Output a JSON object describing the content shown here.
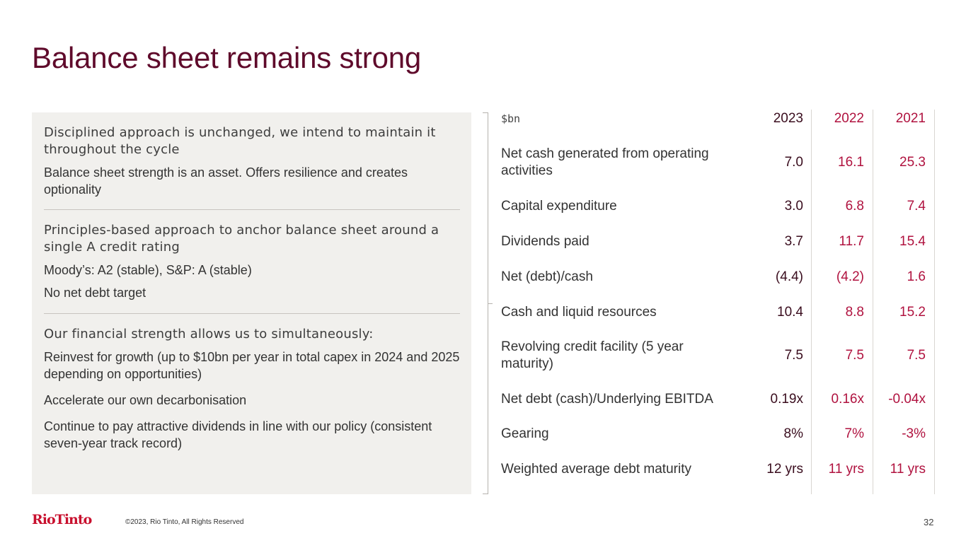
{
  "title": "Balance sheet remains strong",
  "left_panel": {
    "s1_heading": "Disciplined approach is unchanged, we intend to maintain it throughout the cycle",
    "s1_text": "Balance sheet strength is an asset. Offers resilience and creates optionality",
    "s2_heading": "Principles-based approach to anchor balance sheet around a single A credit rating",
    "s2_text1": "Moody’s: A2 (stable), S&P: A (stable)",
    "s2_text2": "No net debt target",
    "s3_heading": "Our financial strength allows us to simultaneously:",
    "s3_text1": "Reinvest for growth (up to $10bn per year in total capex in 2024 and 2025 depending on opportunities)",
    "s3_text2": "Accelerate our own decarbonisation",
    "s3_text3": "Continue to pay attractive dividends in line with our policy (consistent seven-year track record)"
  },
  "table": {
    "unit": "$bn",
    "years": [
      "2023",
      "2022",
      "2021"
    ],
    "rows": [
      {
        "label": "Net cash generated from operating activities",
        "values": [
          "7.0",
          "16.1",
          "25.3"
        ]
      },
      {
        "label": "Capital expenditure",
        "values": [
          "3.0",
          "6.8",
          "7.4"
        ]
      },
      {
        "label": "Dividends paid",
        "values": [
          "3.7",
          "11.7",
          "15.4"
        ]
      },
      {
        "label": "Net (debt)/cash",
        "values": [
          "(4.4)",
          "(4.2)",
          "1.6"
        ]
      },
      {
        "label": "Cash and liquid resources",
        "values": [
          "10.4",
          "8.8",
          "15.2"
        ]
      },
      {
        "label": "Revolving credit facility (5 year maturity)",
        "values": [
          "7.5",
          "7.5",
          "7.5"
        ]
      },
      {
        "label": "Net debt (cash)/Underlying EBITDA",
        "values": [
          "0.19x",
          "0.16x",
          "-0.04x"
        ]
      },
      {
        "label": "Gearing",
        "values": [
          "8%",
          "7%",
          "-3%"
        ]
      },
      {
        "label": "Weighted average debt maturity",
        "values": [
          "12 yrs",
          "11 yrs",
          "11 yrs"
        ]
      }
    ]
  },
  "footer": {
    "logo": "RioTinto",
    "copyright": "©2023, Rio Tinto, All Rights Reserved",
    "page_number": "32"
  },
  "colors": {
    "title": "#5f0a2b",
    "accent_red": "#b0123f",
    "panel_bg": "#f1f0ed",
    "logo_red": "#c8102e"
  }
}
